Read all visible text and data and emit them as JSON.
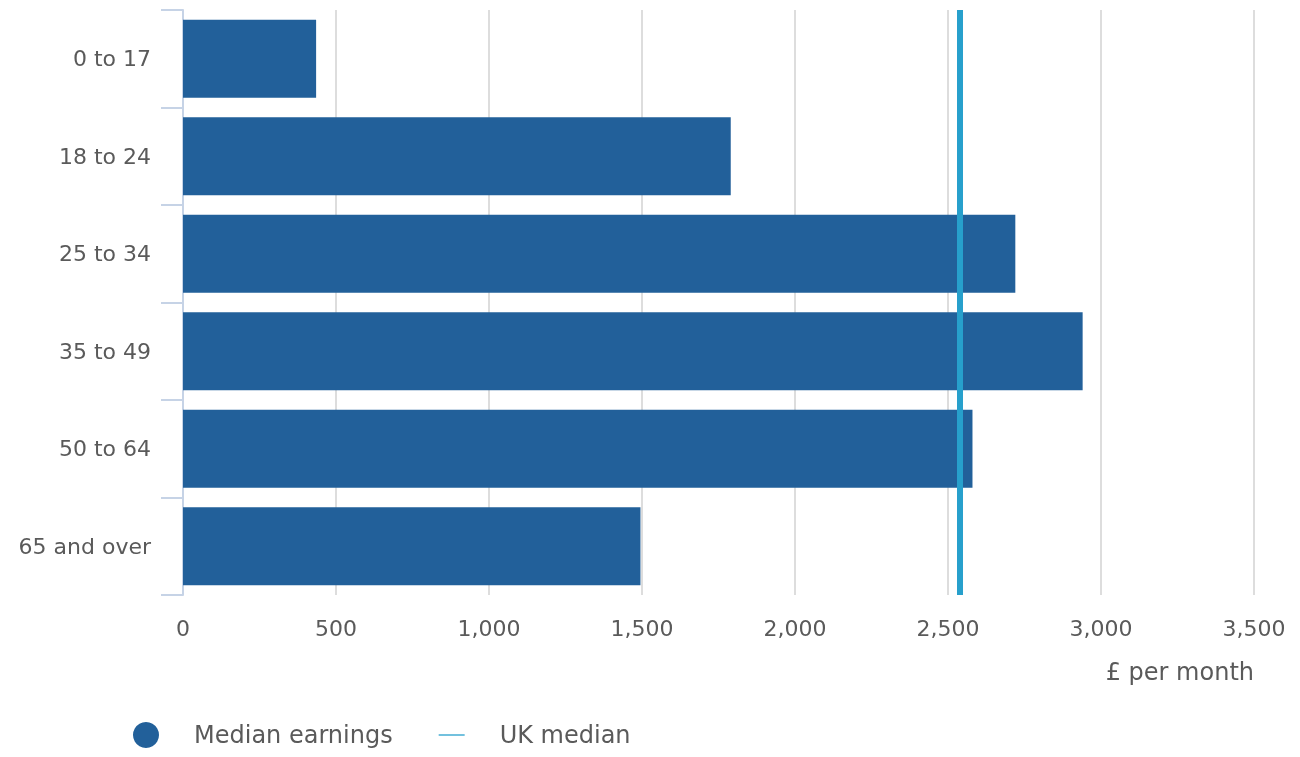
{
  "chart_data": {
    "type": "bar",
    "orientation": "horizontal",
    "xlabel": "£ per month",
    "categories": [
      "0 to 17",
      "18 to 24",
      "25 to 34",
      "35 to 49",
      "50 to 64",
      "65 and over"
    ],
    "series": [
      {
        "name": "Median earnings",
        "color": "#22609a",
        "values": [
          435,
          1790,
          2720,
          2940,
          2580,
          1495
        ]
      }
    ],
    "xlim": [
      0,
      3500
    ],
    "xticks": [
      {
        "value": 0,
        "label": "0"
      },
      {
        "value": 500,
        "label": "500"
      },
      {
        "value": 1000,
        "label": "1,000"
      },
      {
        "value": 1500,
        "label": "1,500"
      },
      {
        "value": 2000,
        "label": "2,000"
      },
      {
        "value": 2500,
        "label": "2,500"
      },
      {
        "value": 3000,
        "label": "3,000"
      },
      {
        "value": 3500,
        "label": "3,500"
      }
    ],
    "ref_lines": [
      {
        "axis": "x",
        "value": 2540,
        "label": "UK median",
        "color": "#27a0cc"
      }
    ],
    "grid": "x",
    "legend": "bottom left"
  }
}
